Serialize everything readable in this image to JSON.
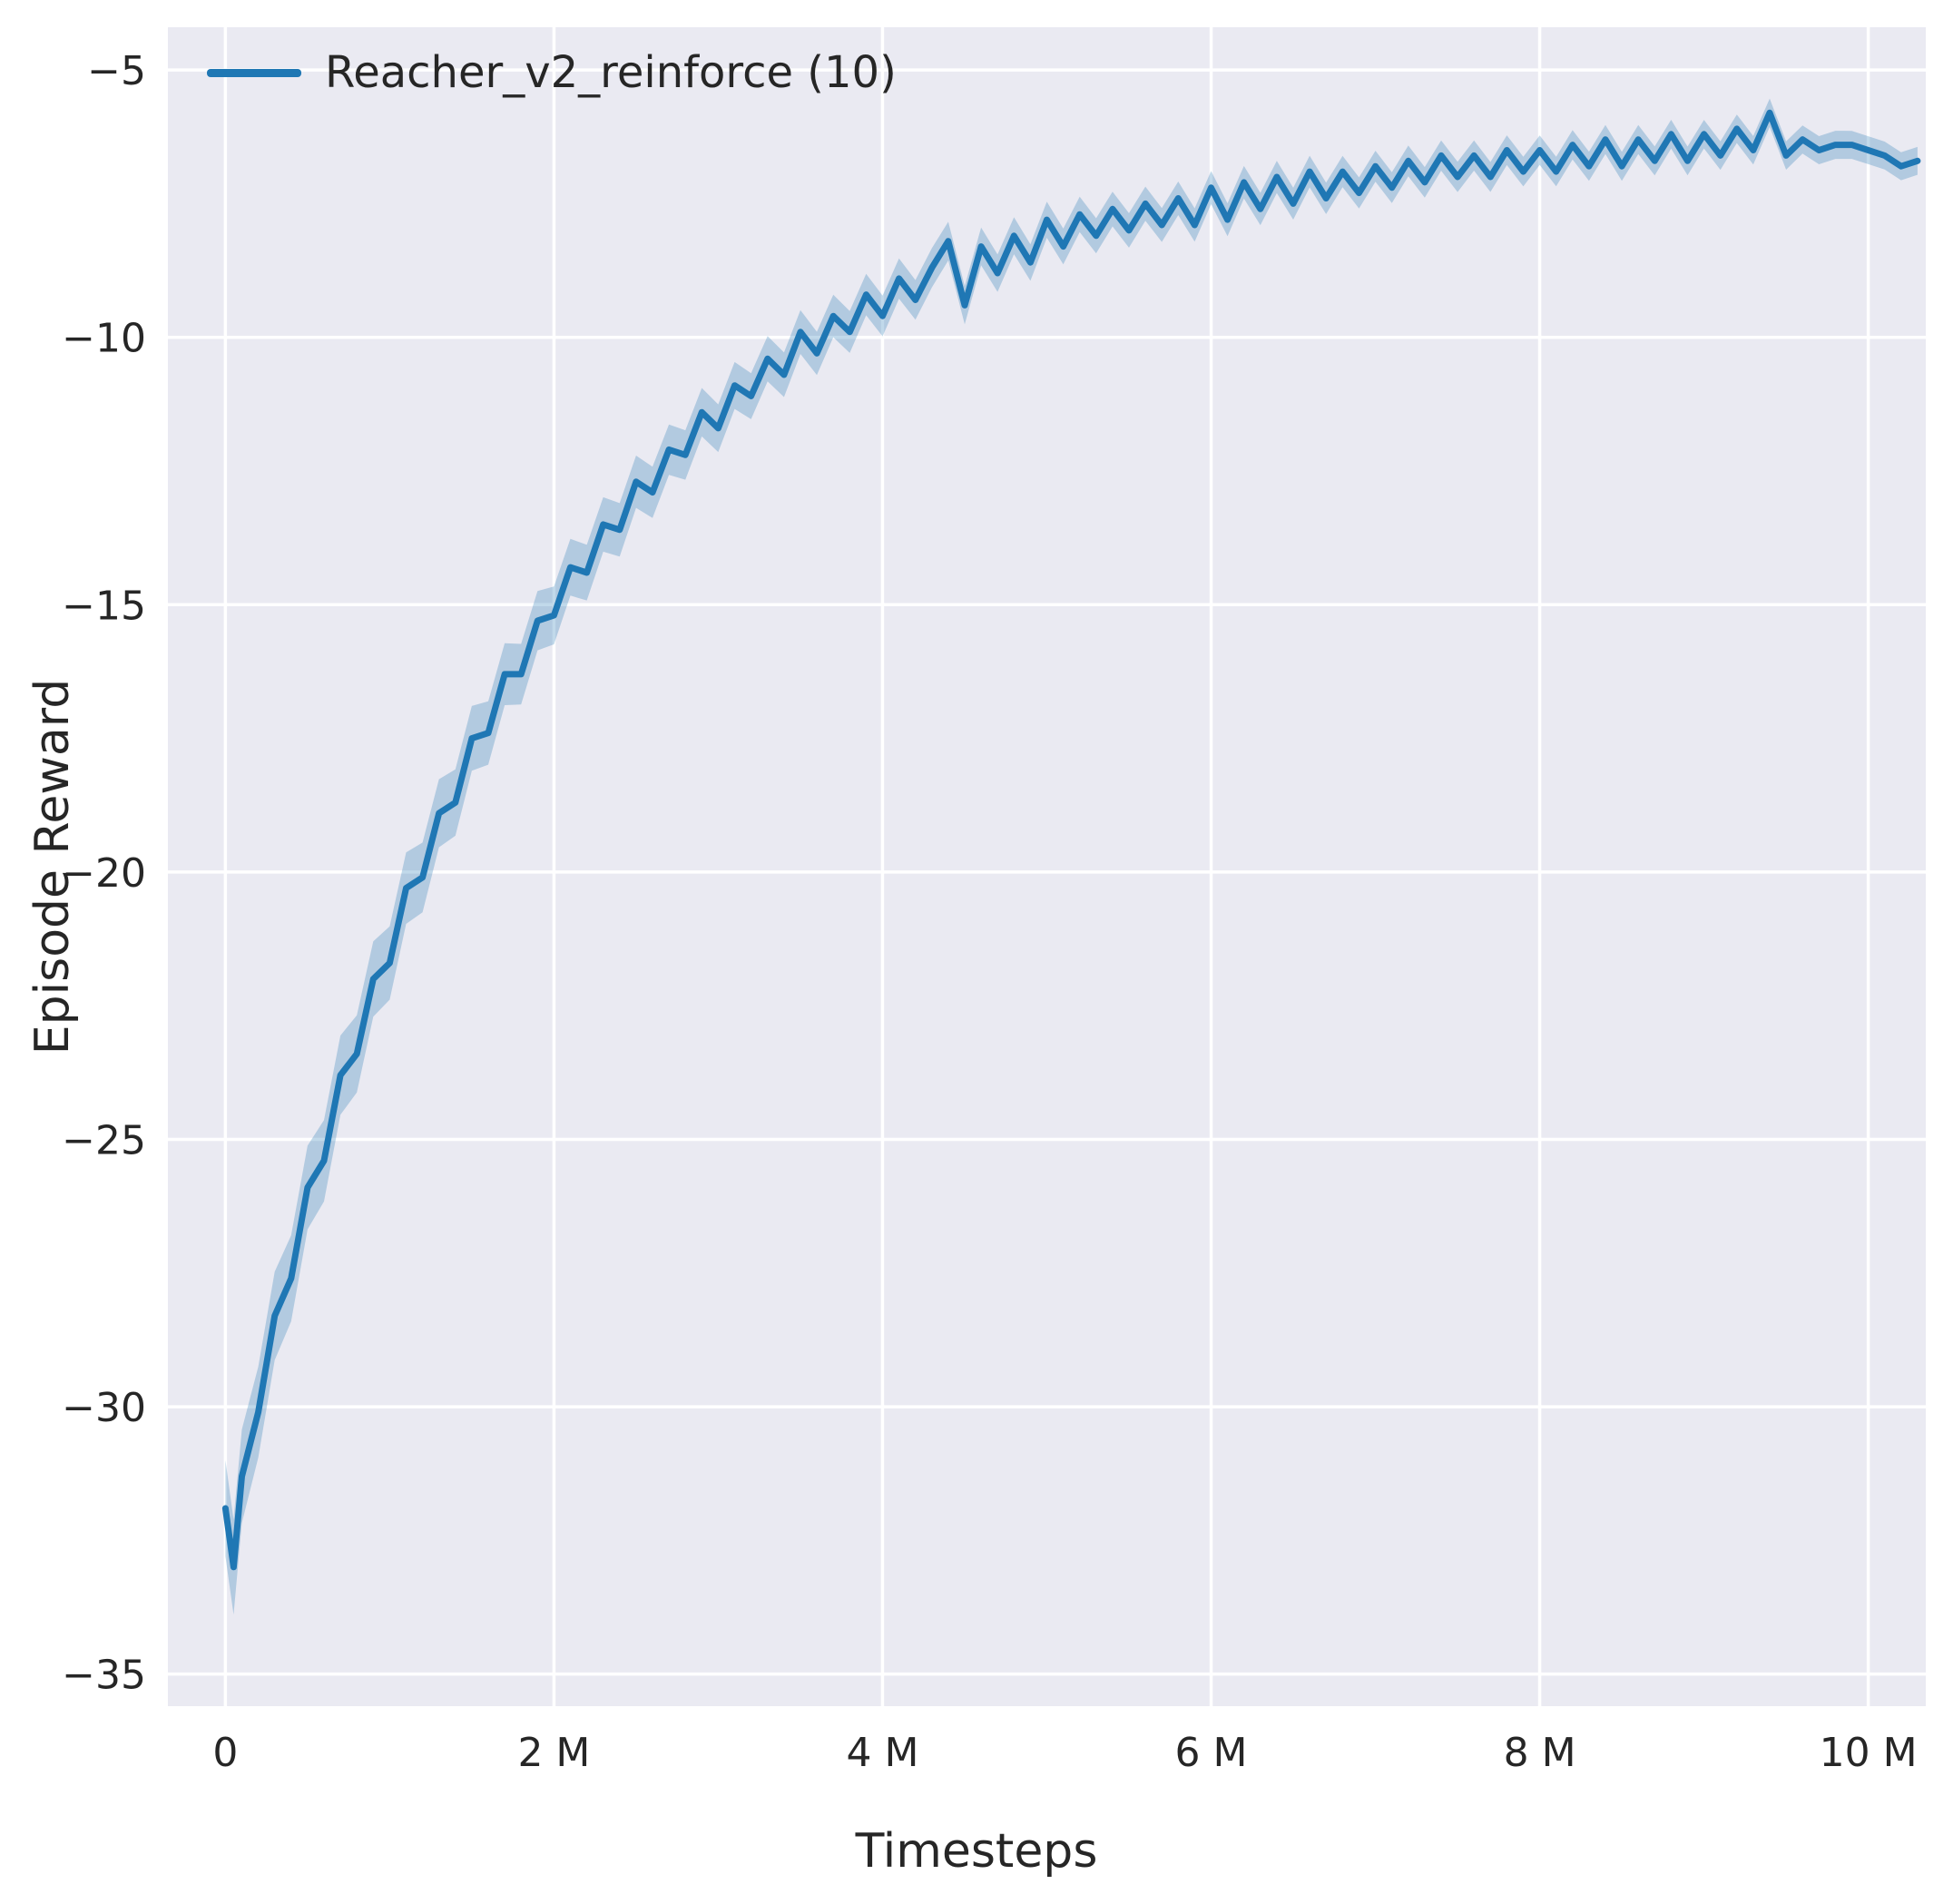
{
  "chart_data": {
    "type": "line",
    "title": "",
    "xlabel": "Timesteps",
    "ylabel": "Episode Reward",
    "x_unit": "millions of timesteps",
    "xlim": [
      -0.35,
      10.35
    ],
    "ylim": [
      -35.6,
      -4.2
    ],
    "grid": true,
    "legend_position": "upper left",
    "plot_bg_color": "#eaeaf2",
    "grid_color": "#ffffff",
    "x_ticks": {
      "values": [
        0,
        2,
        4,
        6,
        8,
        10
      ],
      "labels": [
        "0",
        "2 M",
        "4 M",
        "6 M",
        "8 M",
        "10 M"
      ]
    },
    "y_ticks": {
      "values": [
        -5,
        -10,
        -15,
        -20,
        -25,
        -30,
        -35
      ],
      "labels": [
        "−5",
        "−10",
        "−15",
        "−20",
        "−25",
        "−30",
        "−35"
      ]
    },
    "series": [
      {
        "name": "Reacher_v2_reinforce (10)",
        "color": "#1f77b4",
        "band_opacity": 0.28,
        "band": {
          "base": 0.25,
          "scale": 0.65,
          "tau": 2.5
        },
        "x": [
          0,
          0.05,
          0.1,
          0.2,
          0.3,
          0.4,
          0.5,
          0.6,
          0.7,
          0.8,
          0.9,
          1.0,
          1.1,
          1.2,
          1.3,
          1.4,
          1.5,
          1.6,
          1.7,
          1.8,
          1.9,
          2.0,
          2.1,
          2.2,
          2.3,
          2.4,
          2.5,
          2.6,
          2.7,
          2.8,
          2.9,
          3.0,
          3.1,
          3.2,
          3.3,
          3.4,
          3.5,
          3.6,
          3.7,
          3.8,
          3.9,
          4.0,
          4.1,
          4.2,
          4.3,
          4.4,
          4.5,
          4.6,
          4.7,
          4.8,
          4.9,
          5.0,
          5.1,
          5.2,
          5.3,
          5.4,
          5.5,
          5.6,
          5.7,
          5.8,
          5.9,
          6.0,
          6.1,
          6.2,
          6.3,
          6.4,
          6.5,
          6.6,
          6.7,
          6.8,
          6.9,
          7.0,
          7.1,
          7.2,
          7.3,
          7.4,
          7.5,
          7.6,
          7.7,
          7.8,
          7.9,
          8.0,
          8.1,
          8.2,
          8.3,
          8.4,
          8.5,
          8.6,
          8.7,
          8.8,
          8.9,
          9.0,
          9.1,
          9.2,
          9.3,
          9.4,
          9.5,
          9.6,
          9.7,
          9.8,
          9.9,
          10.0,
          10.1,
          10.2,
          10.3
        ],
        "y": [
          -31.9,
          -33.0,
          -31.3,
          -30.1,
          -28.3,
          -27.6,
          -25.9,
          -25.4,
          -23.8,
          -23.4,
          -22.0,
          -21.7,
          -20.3,
          -20.1,
          -18.9,
          -18.7,
          -17.5,
          -17.4,
          -16.3,
          -16.3,
          -15.3,
          -15.2,
          -14.3,
          -14.4,
          -13.5,
          -13.6,
          -12.7,
          -12.9,
          -12.1,
          -12.2,
          -11.4,
          -11.7,
          -10.9,
          -11.1,
          -10.4,
          -10.7,
          -9.9,
          -10.3,
          -9.6,
          -9.9,
          -9.2,
          -9.6,
          -8.9,
          -9.3,
          -8.7,
          -8.2,
          -9.4,
          -8.3,
          -8.8,
          -8.1,
          -8.6,
          -7.8,
          -8.3,
          -7.7,
          -8.1,
          -7.6,
          -8.0,
          -7.5,
          -7.9,
          -7.4,
          -7.9,
          -7.2,
          -7.8,
          -7.1,
          -7.6,
          -7.0,
          -7.5,
          -6.9,
          -7.4,
          -6.9,
          -7.3,
          -6.8,
          -7.2,
          -6.7,
          -7.1,
          -6.6,
          -7.0,
          -6.6,
          -7.0,
          -6.5,
          -6.9,
          -6.5,
          -6.9,
          -6.4,
          -6.8,
          -6.3,
          -6.8,
          -6.3,
          -6.7,
          -6.2,
          -6.7,
          -6.2,
          -6.6,
          -6.1,
          -6.5,
          -5.8,
          -6.6,
          -6.3,
          -6.5,
          -6.4,
          -6.4,
          -6.5,
          -6.6,
          -6.8,
          -6.7
        ]
      }
    ]
  }
}
